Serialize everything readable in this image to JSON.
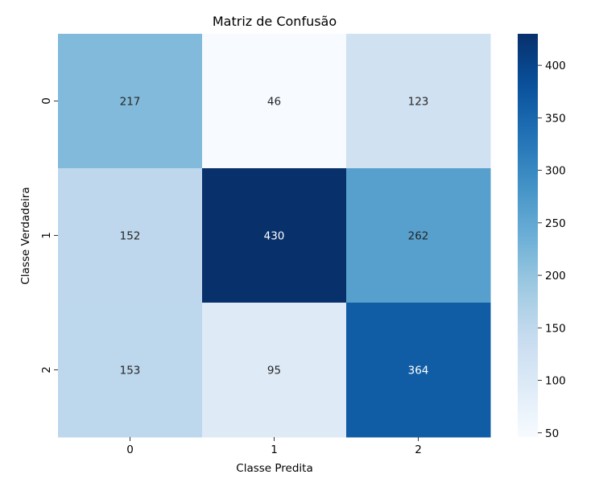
{
  "chart_data": {
    "type": "heatmap",
    "title": "Matriz de Confusão",
    "xlabel": "Classe Predita",
    "ylabel": "Classe Verdadeira",
    "x_categories": [
      "0",
      "1",
      "2"
    ],
    "y_categories": [
      "0",
      "1",
      "2"
    ],
    "values": [
      [
        217,
        46,
        123
      ],
      [
        152,
        430,
        262
      ],
      [
        153,
        95,
        364
      ]
    ],
    "colormap": "Blues",
    "colorbar": {
      "min": 46,
      "max": 430,
      "ticks": [
        50,
        100,
        150,
        200,
        250,
        300,
        350,
        400
      ]
    }
  }
}
